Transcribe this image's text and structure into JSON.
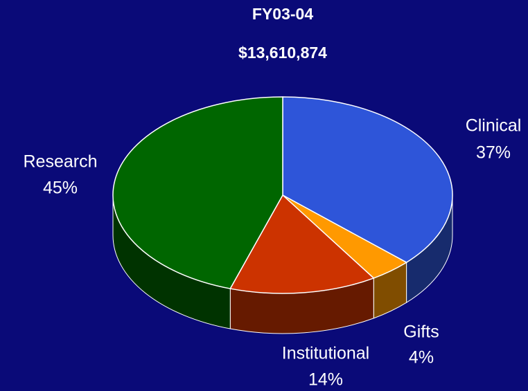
{
  "chart_data": {
    "type": "pie3d",
    "title": "FY03-04",
    "subtitle": "$13,610,874",
    "categories": [
      "Clinical",
      "Gifts",
      "Institutional",
      "Research"
    ],
    "values": [
      37,
      4,
      14,
      45
    ],
    "value_labels": [
      "37%",
      "4%",
      "14%",
      "45%"
    ],
    "colors": [
      "#2e55d9",
      "#ff9900",
      "#cc3300",
      "#006600"
    ]
  }
}
